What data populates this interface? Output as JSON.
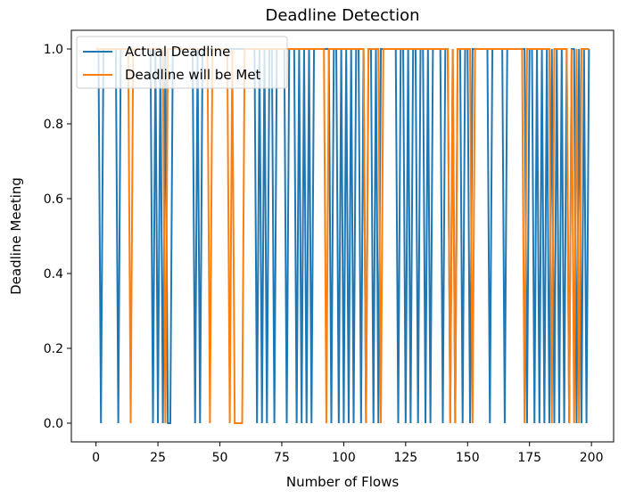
{
  "chart_data": {
    "type": "line",
    "title": "Deadline Detection",
    "xlabel": "Number of Flows",
    "ylabel": "Deadline Meeting",
    "xlim": [
      -9.95,
      208.95
    ],
    "ylim": [
      -0.05,
      1.05
    ],
    "xticks": [
      0,
      25,
      50,
      75,
      100,
      125,
      150,
      175,
      200
    ],
    "yticks": [
      0.0,
      0.2,
      0.4,
      0.6,
      0.8,
      1.0
    ],
    "xtick_labels": [
      "0",
      "25",
      "50",
      "75",
      "100",
      "125",
      "150",
      "175",
      "200"
    ],
    "ytick_labels": [
      "0.0",
      "0.2",
      "0.4",
      "0.6",
      "0.8",
      "1.0"
    ],
    "grid": false,
    "legend_position": "top-left",
    "x": [
      0,
      1,
      2,
      3,
      4,
      5,
      6,
      7,
      8,
      9,
      10,
      11,
      12,
      13,
      14,
      15,
      16,
      17,
      18,
      19,
      20,
      21,
      22,
      23,
      24,
      25,
      26,
      27,
      28,
      29,
      30,
      31,
      32,
      33,
      34,
      35,
      36,
      37,
      38,
      39,
      40,
      41,
      42,
      43,
      44,
      45,
      46,
      47,
      48,
      49,
      50,
      51,
      52,
      53,
      54,
      55,
      56,
      57,
      58,
      59,
      60,
      61,
      62,
      63,
      64,
      65,
      66,
      67,
      68,
      69,
      70,
      71,
      72,
      73,
      74,
      75,
      76,
      77,
      78,
      79,
      80,
      81,
      82,
      83,
      84,
      85,
      86,
      87,
      88,
      89,
      90,
      91,
      92,
      93,
      94,
      95,
      96,
      97,
      98,
      99,
      100,
      101,
      102,
      103,
      104,
      105,
      106,
      107,
      108,
      109,
      110,
      111,
      112,
      113,
      114,
      115,
      116,
      117,
      118,
      119,
      120,
      121,
      122,
      123,
      124,
      125,
      126,
      127,
      128,
      129,
      130,
      131,
      132,
      133,
      134,
      135,
      136,
      137,
      138,
      139,
      140,
      141,
      142,
      143,
      144,
      145,
      146,
      147,
      148,
      149,
      150,
      151,
      152,
      153,
      154,
      155,
      156,
      157,
      158,
      159,
      160,
      161,
      162,
      163,
      164,
      165,
      166,
      167,
      168,
      169,
      170,
      171,
      172,
      173,
      174,
      175,
      176,
      177,
      178,
      179,
      180,
      181,
      182,
      183,
      184,
      185,
      186,
      187,
      188,
      189,
      190,
      191,
      192,
      193,
      194,
      195,
      196,
      197,
      198,
      199
    ],
    "series": [
      {
        "name": "Actual Deadline",
        "color": "#1f77b4",
        "values": [
          1,
          1,
          0,
          1,
          1,
          1,
          1,
          1,
          1,
          0,
          1,
          1,
          1,
          1,
          1,
          1,
          1,
          1,
          1,
          1,
          1,
          1,
          1,
          0,
          1,
          0,
          1,
          0,
          1,
          0,
          0,
          1,
          1,
          1,
          1,
          1,
          1,
          1,
          1,
          1,
          0,
          1,
          0,
          1,
          1,
          1,
          1,
          1,
          1,
          1,
          1,
          1,
          1,
          1,
          1,
          1,
          1,
          1,
          1,
          1,
          1,
          1,
          1,
          1,
          1,
          0,
          1,
          0,
          1,
          0,
          1,
          1,
          0,
          1,
          1,
          1,
          1,
          0,
          1,
          1,
          1,
          0,
          1,
          0,
          1,
          0,
          1,
          0,
          1,
          1,
          1,
          1,
          1,
          1,
          1,
          0,
          1,
          1,
          0,
          1,
          0,
          1,
          0,
          1,
          0,
          1,
          1,
          0,
          1,
          0,
          1,
          1,
          0,
          1,
          0,
          1,
          1,
          1,
          1,
          1,
          1,
          1,
          0,
          1,
          1,
          0,
          1,
          0,
          1,
          1,
          0,
          1,
          1,
          0,
          1,
          0,
          1,
          1,
          1,
          1,
          0,
          1,
          1,
          0,
          1,
          0,
          1,
          1,
          0,
          1,
          1,
          0,
          1,
          1,
          1,
          1,
          1,
          1,
          1,
          0,
          1,
          1,
          1,
          1,
          1,
          0,
          1,
          1,
          1,
          1,
          1,
          1,
          1,
          1,
          0,
          1,
          1,
          0,
          1,
          0,
          1,
          0,
          1,
          0,
          1,
          0,
          1,
          0,
          1,
          0,
          1,
          0,
          1,
          1,
          0,
          1,
          0,
          1,
          0,
          1
        ]
      },
      {
        "name": "Deadline will be Met",
        "color": "#ff7f0e",
        "values": [
          1,
          1,
          1,
          1,
          1,
          1,
          1,
          1,
          1,
          1,
          1,
          1,
          1,
          1,
          0,
          1,
          1,
          1,
          1,
          1,
          1,
          1,
          1,
          1,
          1,
          1,
          1,
          1,
          0,
          1,
          1,
          1,
          1,
          1,
          1,
          1,
          1,
          1,
          1,
          1,
          1,
          1,
          1,
          1,
          1,
          1,
          0,
          1,
          1,
          1,
          1,
          1,
          1,
          1,
          0,
          1,
          0,
          0,
          0,
          0,
          1,
          1,
          1,
          1,
          1,
          1,
          1,
          1,
          1,
          1,
          1,
          1,
          1,
          1,
          1,
          1,
          1,
          1,
          1,
          1,
          1,
          1,
          1,
          1,
          1,
          1,
          1,
          1,
          1,
          1,
          1,
          1,
          1,
          0,
          1,
          1,
          1,
          1,
          1,
          1,
          1,
          1,
          1,
          1,
          1,
          1,
          1,
          1,
          1,
          0,
          1,
          1,
          1,
          1,
          1,
          0,
          1,
          1,
          1,
          1,
          1,
          1,
          1,
          1,
          1,
          1,
          1,
          1,
          1,
          1,
          1,
          1,
          1,
          1,
          1,
          1,
          1,
          1,
          1,
          1,
          1,
          1,
          1,
          0,
          1,
          0,
          1,
          1,
          1,
          1,
          1,
          1,
          0,
          1,
          1,
          1,
          1,
          1,
          1,
          1,
          1,
          1,
          1,
          1,
          1,
          1,
          1,
          1,
          1,
          1,
          1,
          1,
          1,
          0,
          1,
          1,
          1,
          1,
          1,
          1,
          1,
          1,
          1,
          1,
          0,
          1,
          1,
          1,
          1,
          1,
          1,
          0,
          1,
          0,
          1,
          0,
          1,
          1,
          1,
          1
        ]
      }
    ]
  }
}
